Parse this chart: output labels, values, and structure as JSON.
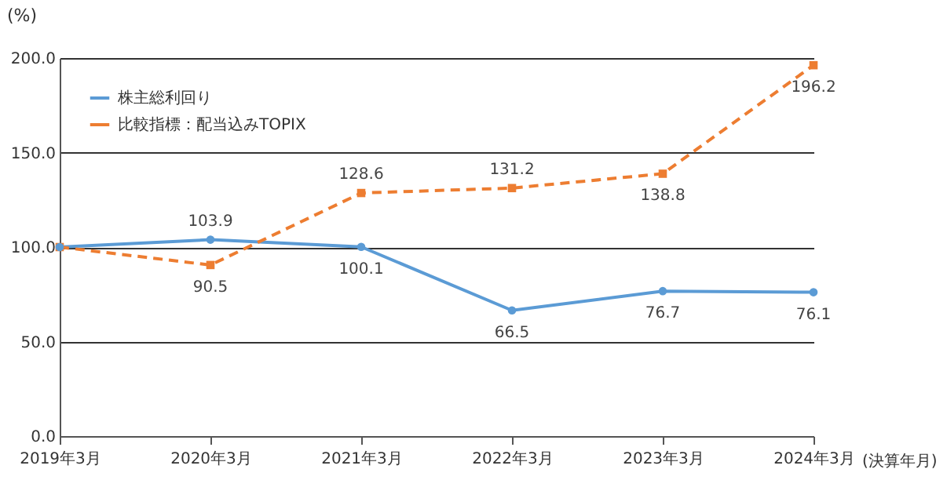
{
  "chart_data": {
    "type": "line",
    "xlabel": "(決算年月)",
    "ylabel": "(%)",
    "categories": [
      "2019年3月",
      "2020年3月",
      "2021年3月",
      "2022年3月",
      "2023年3月",
      "2024年3月"
    ],
    "series": [
      {
        "name": "株主総利回り",
        "color": "#5b9bd5",
        "marker": "circle",
        "line_style": "solid",
        "values": [
          100,
          103.9,
          100.1,
          66.5,
          76.7,
          76.1
        ],
        "value_labels": [
          null,
          "103.9",
          "100.1",
          "66.5",
          "76.7",
          "76.1"
        ]
      },
      {
        "name": "比較指標：配当込みTOPIX",
        "color": "#ed7d31",
        "marker": "square",
        "line_style": "dashed",
        "values": [
          100,
          90.5,
          128.6,
          131.2,
          138.8,
          196.2
        ],
        "value_labels": [
          null,
          "90.5",
          "128.6",
          "131.2",
          "138.8",
          "196.2"
        ]
      }
    ],
    "ylim": [
      0,
      200
    ],
    "yticks": [
      {
        "value": 0,
        "label": "0.0"
      },
      {
        "value": 50,
        "label": "50.0"
      },
      {
        "value": 100,
        "label": "100.0"
      },
      {
        "value": 150,
        "label": "150.0"
      },
      {
        "value": 200,
        "label": "200.0"
      }
    ],
    "grid": "y",
    "legend": "top left"
  }
}
